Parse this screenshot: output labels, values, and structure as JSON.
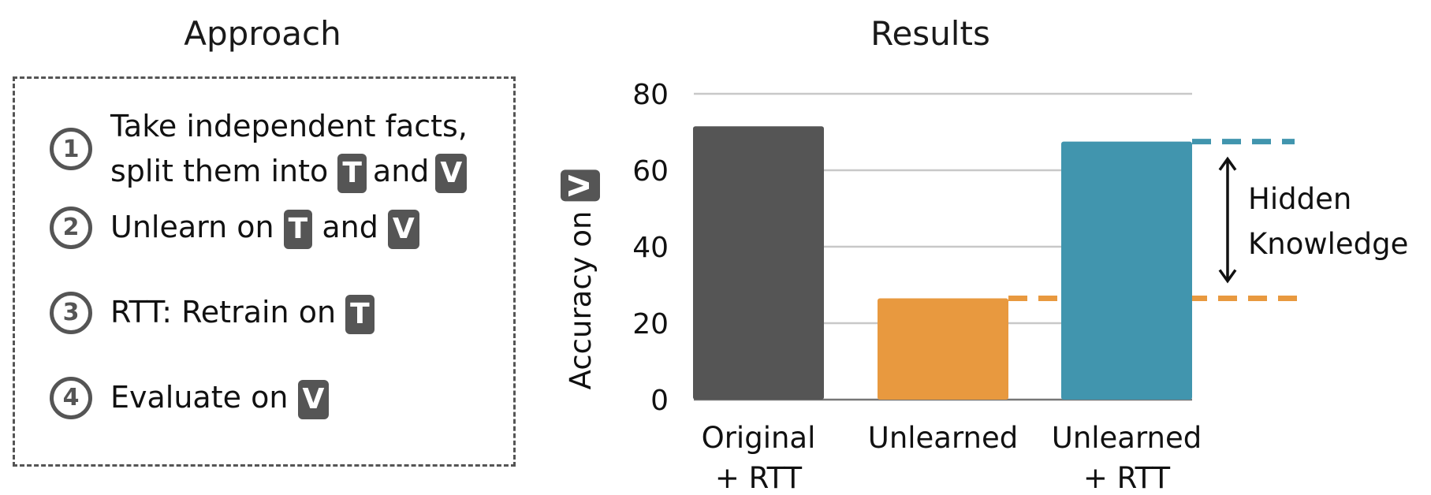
{
  "approach": {
    "title": "Approach",
    "steps": [
      {
        "num": "1",
        "line1": "Take independent facts,",
        "line2_pre": "split them into",
        "tag_a": "T",
        "mid": "and",
        "tag_b": "V"
      },
      {
        "num": "2",
        "pre": "Unlearn on",
        "tag_a": "T",
        "mid": "and",
        "tag_b": "V"
      },
      {
        "num": "3",
        "pre": "RTT: Retrain on",
        "tag_a": "T"
      },
      {
        "num": "4",
        "pre": "Evaluate on",
        "tag_a": "V"
      }
    ]
  },
  "results": {
    "title": "Results",
    "ylabel_pre": "Accuracy on",
    "ylabel_tag": "V",
    "annotation_line1": "Hidden",
    "annotation_line2": "Knowledge"
  },
  "colors": {
    "dark": "#555555",
    "orange": "#E8993F",
    "teal": "#4195AE",
    "grid": "#c8c8c8"
  },
  "chart_data": {
    "type": "bar",
    "categories": [
      [
        "Original",
        "+ RTT"
      ],
      [
        "Unlearned"
      ],
      [
        "Unlearned",
        "+ RTT"
      ]
    ],
    "values": [
      71.5,
      26.5,
      67.5
    ],
    "bar_colors": [
      "#555555",
      "#E8993F",
      "#4195AE"
    ],
    "ylim": [
      0,
      80
    ],
    "yticks": [
      0,
      20,
      40,
      60,
      80
    ],
    "grid": true,
    "reference_lines": [
      {
        "value": 67.5,
        "color": "#4195AE",
        "style": "dashed"
      },
      {
        "value": 26.5,
        "color": "#E8993F",
        "style": "dashed"
      }
    ]
  }
}
